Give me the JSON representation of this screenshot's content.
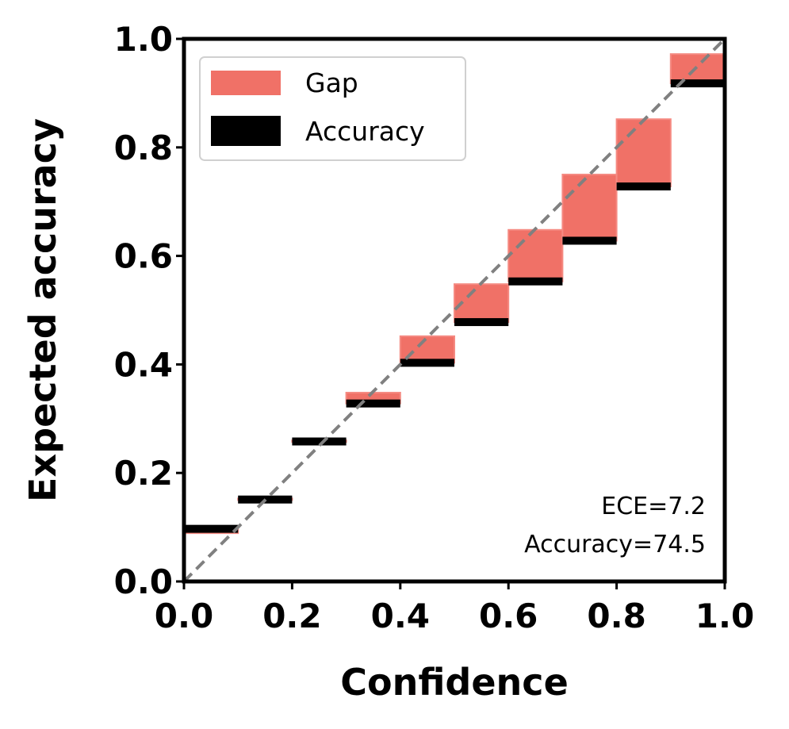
{
  "chart_data": {
    "type": "bar",
    "xlabel": "Confidence",
    "ylabel": "Expected accuracy",
    "xlim": [
      0.0,
      1.0
    ],
    "ylim": [
      0.0,
      1.0
    ],
    "xticks": [
      "0.0",
      "0.2",
      "0.4",
      "0.6",
      "0.8",
      "1.0"
    ],
    "yticks": [
      "0.0",
      "0.2",
      "0.4",
      "0.6",
      "0.8",
      "1.0"
    ],
    "bin_width": 0.1,
    "bins": [
      0.0,
      0.1,
      0.2,
      0.3,
      0.4,
      0.5,
      0.6,
      0.7,
      0.8,
      0.9
    ],
    "series": [
      {
        "name": "Gap",
        "color": "#f07167",
        "top": [
          0.089,
          0.153,
          0.26,
          0.348,
          0.452,
          0.548,
          0.648,
          0.75,
          0.852,
          0.972
        ]
      },
      {
        "name": "Accuracy",
        "color": "#000000",
        "values": [
          0.097,
          0.151,
          0.258,
          0.328,
          0.403,
          0.478,
          0.553,
          0.628,
          0.728,
          0.918
        ]
      }
    ],
    "diagonal": {
      "style": "dashed",
      "color": "#808080"
    },
    "legend": {
      "position": "top-left"
    },
    "grid": false,
    "annotations": [
      "ECE=7.2",
      "Accuracy=74.5"
    ]
  }
}
